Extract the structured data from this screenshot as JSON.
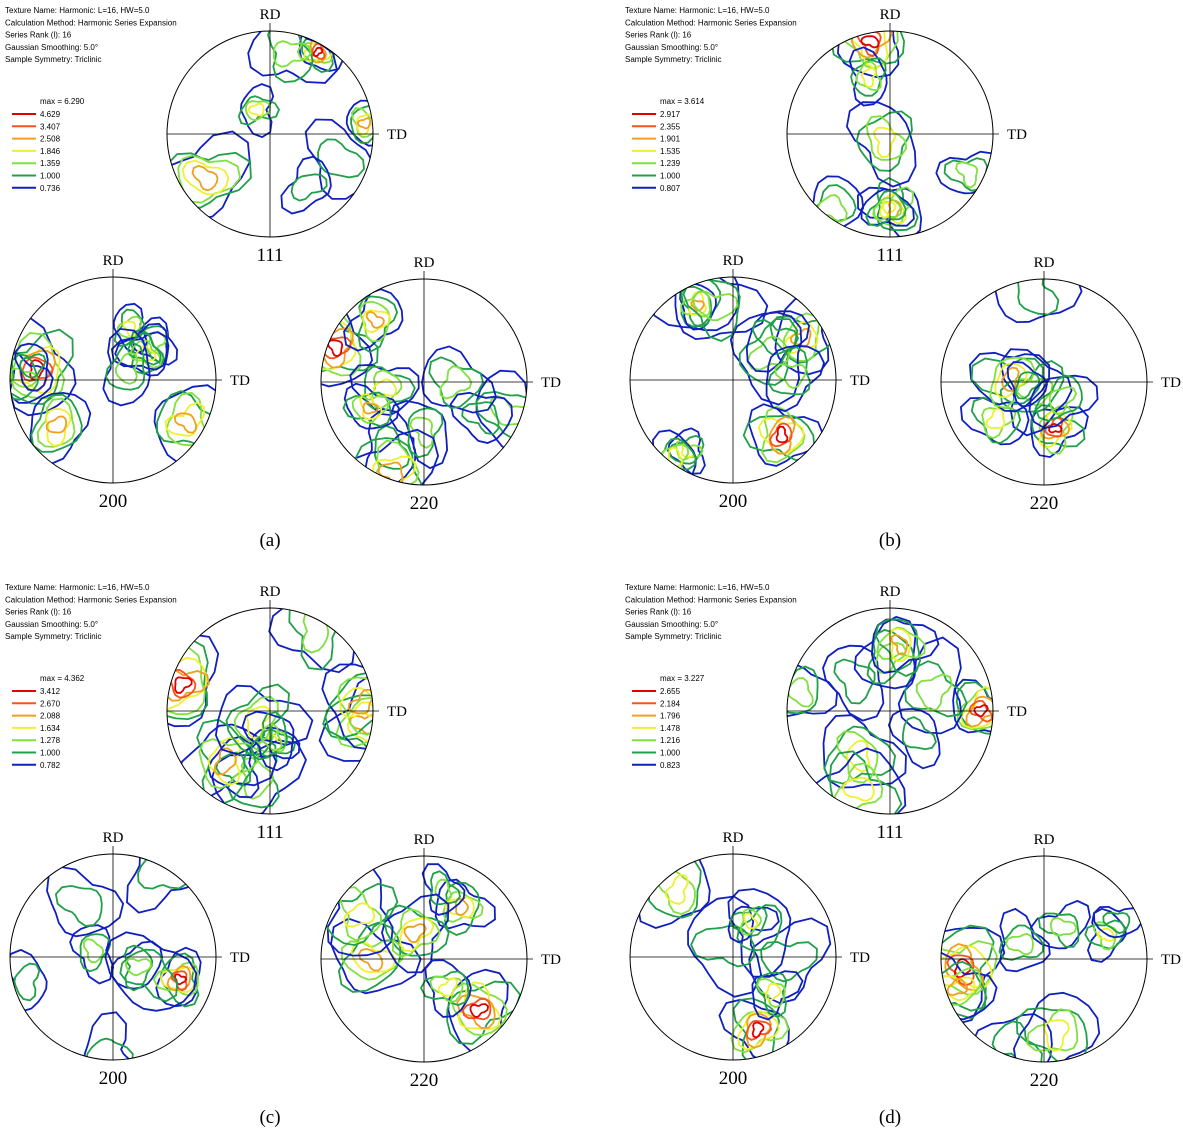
{
  "panels": [
    {
      "caption": "(a)",
      "header": [
        "Texture Name: Harmonic: L=16, HW=5.0",
        "Calculation Method: Harmonic Series Expansion",
        "Series Rank (l): 16",
        "Gaussian Smoothing: 5.0°",
        "Sample Symmetry: Triclinic"
      ],
      "legend": {
        "max": "max = 6.290",
        "levels": [
          "4.629",
          "3.407",
          "2.508",
          "1.846",
          "1.359",
          "1.000",
          "0.736"
        ]
      },
      "figures": [
        {
          "rd": "RD",
          "td": "TD",
          "label": "111"
        },
        {
          "rd": "RD",
          "td": "TD",
          "label": "200"
        },
        {
          "rd": "RD",
          "td": "TD",
          "label": "220"
        }
      ]
    },
    {
      "caption": "(b)",
      "header": [
        "Texture Name: Harmonic: L=16, HW=5.0",
        "Calculation Method: Harmonic Series Expansion",
        "Series Rank (l): 16",
        "Gaussian Smoothing: 5.0°",
        "Sample Symmetry: Triclinic"
      ],
      "legend": {
        "max": "max = 3.614",
        "levels": [
          "2.917",
          "2.355",
          "1.901",
          "1.535",
          "1.239",
          "1.000",
          "0.807"
        ]
      },
      "figures": [
        {
          "rd": "RD",
          "td": "TD",
          "label": "111"
        },
        {
          "rd": "RD",
          "td": "TD",
          "label": "200"
        },
        {
          "rd": "RD",
          "td": "TD",
          "label": "220"
        }
      ]
    },
    {
      "caption": "(c)",
      "header": [
        "Texture Name: Harmonic: L=16, HW=5.0",
        "Calculation Method: Harmonic Series Expansion",
        "Series Rank (l): 16",
        "Gaussian Smoothing: 5.0°",
        "Sample Symmetry: Triclinic"
      ],
      "legend": {
        "max": "max = 4.362",
        "levels": [
          "3.412",
          "2.670",
          "2.088",
          "1.634",
          "1.278",
          "1.000",
          "0.782"
        ]
      },
      "figures": [
        {
          "rd": "RD",
          "td": "TD",
          "label": "111"
        },
        {
          "rd": "RD",
          "td": "TD",
          "label": "200"
        },
        {
          "rd": "RD",
          "td": "TD",
          "label": "220"
        }
      ]
    },
    {
      "caption": "(d)",
      "header": [
        "Texture Name: Harmonic: L=16, HW=5.0",
        "Calculation Method: Harmonic Series Expansion",
        "Series Rank (l): 16",
        "Gaussian Smoothing: 5.0°",
        "Sample Symmetry: Triclinic"
      ],
      "legend": {
        "max": "max = 3.227",
        "levels": [
          "2.655",
          "2.184",
          "1.796",
          "1.478",
          "1.216",
          "1.000",
          "0.823"
        ]
      },
      "figures": [
        {
          "rd": "RD",
          "td": "TD",
          "label": "111"
        },
        {
          "rd": "RD",
          "td": "TD",
          "label": "200"
        },
        {
          "rd": "RD",
          "td": "TD",
          "label": "220"
        }
      ]
    }
  ]
}
